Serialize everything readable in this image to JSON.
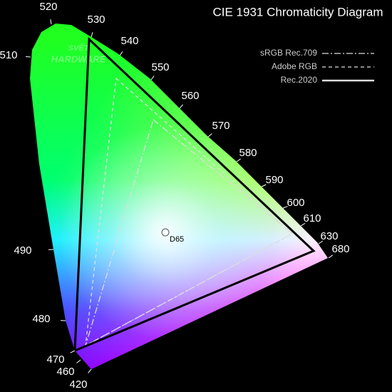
{
  "title": "CIE 1931 Chromaticity Diagram",
  "legend": [
    {
      "name": "sRGB Rec.709"
    },
    {
      "name": "Adobe RGB"
    },
    {
      "name": "Rec.2020"
    }
  ],
  "wavelengths": [
    "520",
    "530",
    "540",
    "550",
    "560",
    "570",
    "580",
    "590",
    "600",
    "610",
    "630",
    "680",
    "510",
    "490",
    "480",
    "470",
    "460",
    "420"
  ],
  "white_point": "D65",
  "watermark": [
    "SVĚT",
    "HARDWARE"
  ]
}
